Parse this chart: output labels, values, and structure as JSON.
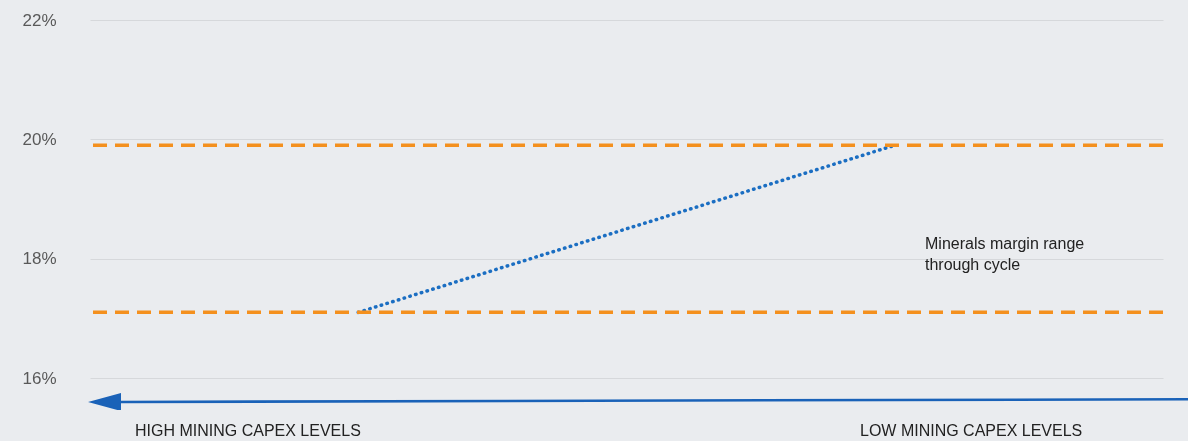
{
  "chart_data": {
    "type": "line",
    "categories": [
      null,
      null
    ],
    "series": [
      {
        "color": "#1b6ec2",
        "values": [
          17.1,
          19.9
        ]
      }
    ],
    "line_style": "dotted",
    "marker": "none",
    "grid": "y",
    "tick_labels": "y",
    "ylim": [
      16,
      22
    ],
    "yticks": [
      {
        "value": 16,
        "label": "16%"
      },
      {
        "value": 18,
        "label": "18%"
      },
      {
        "value": 20,
        "label": "20%"
      },
      {
        "value": 22,
        "label": "22%"
      }
    ],
    "ref_lines": [
      {
        "axis": "y",
        "value": 19.9,
        "color": "#f4901e",
        "line_style": "dashed"
      },
      {
        "axis": "y",
        "value": 17.1,
        "color": "#f4901e",
        "line_style": "dashed"
      }
    ],
    "annotations": [
      "Minerals margin range through cycle",
      "HIGH MINING CAPEX LEVELS",
      "LOW MINING CAPEX LEVELS"
    ]
  }
}
